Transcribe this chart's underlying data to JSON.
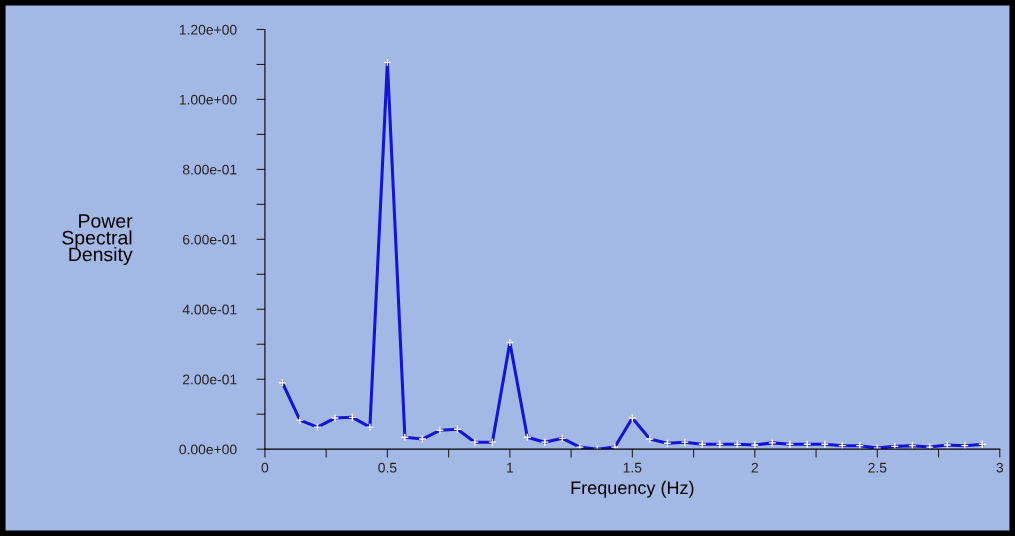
{
  "chart_data": {
    "type": "line",
    "xlabel": "Frequency (Hz)",
    "ylabel": "Power\nSpectral\nDensity",
    "x": [
      0.0714,
      0.1429,
      0.2143,
      0.2857,
      0.3571,
      0.4286,
      0.5,
      0.5714,
      0.6429,
      0.7143,
      0.7857,
      0.8571,
      0.9286,
      1.0,
      1.0714,
      1.1429,
      1.2143,
      1.2857,
      1.3571,
      1.4286,
      1.5,
      1.5714,
      1.6429,
      1.7143,
      1.7857,
      1.8571,
      1.9286,
      2.0,
      2.0714,
      2.1429,
      2.2143,
      2.2857,
      2.3571,
      2.4286,
      2.5,
      2.5714,
      2.6429,
      2.7143,
      2.7857,
      2.8571,
      2.9286
    ],
    "series": [
      {
        "color": "#1414d2",
        "values": [
          0.19,
          0.083,
          0.063,
          0.089,
          0.091,
          0.063,
          1.106,
          0.034,
          0.029,
          0.054,
          0.057,
          0.02,
          0.02,
          0.305,
          0.034,
          0.02,
          0.031,
          0.006,
          0.0,
          0.006,
          0.089,
          0.029,
          0.017,
          0.02,
          0.014,
          0.014,
          0.014,
          0.012,
          0.018,
          0.014,
          0.014,
          0.014,
          0.01,
          0.01,
          0.003,
          0.008,
          0.01,
          0.006,
          0.012,
          0.01,
          0.014
        ]
      }
    ],
    "xlim": [
      0,
      3
    ],
    "ylim": [
      0,
      1.2
    ],
    "xticks": [
      0,
      {
        "value": 0.25,
        "label": null
      },
      0.5,
      {
        "value": 0.75,
        "label": null
      },
      1,
      {
        "value": 1.25,
        "label": null
      },
      1.5,
      {
        "value": 1.75,
        "label": null
      },
      2,
      {
        "value": 2.25,
        "label": null
      },
      2.5,
      {
        "value": 2.75,
        "label": null
      },
      3
    ],
    "yticks": [
      {
        "value": 0,
        "label": "0.00e+00"
      },
      {
        "value": 0.1,
        "label": null
      },
      {
        "value": 0.2,
        "label": "2.00e-01"
      },
      {
        "value": 0.3,
        "label": null
      },
      {
        "value": 0.4,
        "label": "4.00e-01"
      },
      {
        "value": 0.5,
        "label": null
      },
      {
        "value": 0.6,
        "label": "6.00e-01"
      },
      {
        "value": 0.7,
        "label": null
      },
      {
        "value": 0.8,
        "label": "8.00e-01"
      },
      {
        "value": 0.9,
        "label": null
      },
      {
        "value": 1.0,
        "label": "1.00e+00"
      },
      {
        "value": 1.1,
        "label": null
      },
      {
        "value": 1.2,
        "label": "1.20e+00"
      }
    ],
    "grid": false,
    "marker": "cross",
    "line_style": "solid"
  }
}
